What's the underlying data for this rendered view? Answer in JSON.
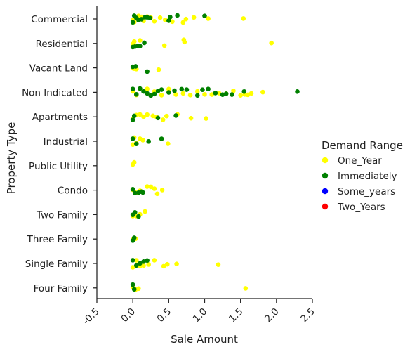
{
  "chart_data": {
    "type": "scatter",
    "subtype": "strip",
    "title": "",
    "xlabel": "Sale Amount",
    "ylabel": "Property Type",
    "xlim": [
      -0.5,
      2.5
    ],
    "x_ticks": [
      -0.5,
      0.0,
      0.5,
      1.0,
      1.5,
      2.0,
      2.5
    ],
    "x_tick_labels": [
      "-0.5",
      "0.0",
      "0.5",
      "1.0",
      "1.5",
      "2.0",
      "2.5"
    ],
    "x_tick_rotation_deg": 45,
    "x_unit_note": "",
    "grid": false,
    "legend": {
      "title": "Demand Range",
      "placement": "right",
      "entries": [
        {
          "name": "One_Year",
          "color": "#ffff00"
        },
        {
          "name": "Immediately",
          "color": "#008000"
        },
        {
          "name": "Some_years",
          "color": "#0000ff"
        },
        {
          "name": "Two_Years",
          "color": "#ff0000"
        }
      ]
    },
    "categories": [
      "Commercial",
      "Residential",
      "Vacant Land",
      "Non Indicated",
      "Apartments",
      "Industrial",
      "Public Utility",
      "Condo",
      "Two Family",
      "Three Family",
      "Single Family",
      "Four Family"
    ],
    "series": [
      {
        "name": "One_Year",
        "color": "#ffff00",
        "points": [
          {
            "category": "Commercial",
            "x": [
              0.0,
              0.02,
              0.05,
              0.08,
              0.12,
              0.15,
              0.2,
              0.25,
              0.3,
              0.38,
              0.45,
              0.55,
              0.7,
              0.74,
              0.85,
              1.05,
              1.54
            ]
          },
          {
            "category": "Residential",
            "x": [
              0.0,
              0.02,
              0.05,
              0.1,
              0.44,
              0.71,
              0.72,
              1.93
            ]
          },
          {
            "category": "Vacant Land",
            "x": [
              0.0,
              0.02,
              0.05,
              0.36
            ]
          },
          {
            "category": "Non Indicated",
            "x": [
              0.0,
              0.05,
              0.1,
              0.2,
              0.3,
              0.4,
              0.5,
              0.6,
              0.7,
              0.8,
              0.9,
              1.0,
              1.1,
              1.2,
              1.3,
              1.4,
              1.5,
              1.56,
              1.6,
              1.65,
              1.81
            ]
          },
          {
            "category": "Apartments",
            "x": [
              0.0,
              0.05,
              0.1,
              0.15,
              0.2,
              0.28,
              0.33,
              0.42,
              0.47,
              0.62,
              0.81,
              1.02
            ]
          },
          {
            "category": "Industrial",
            "x": [
              0.0,
              0.02,
              0.05,
              0.1,
              0.14,
              0.49
            ]
          },
          {
            "category": "Public Utility",
            "x": [
              0.0,
              0.02
            ]
          },
          {
            "category": "Condo",
            "x": [
              0.0,
              0.05,
              0.1,
              0.2,
              0.25,
              0.3,
              0.34,
              0.41
            ]
          },
          {
            "category": "Two Family",
            "x": [
              0.0,
              0.05,
              0.1,
              0.17
            ]
          },
          {
            "category": "Three Family",
            "x": [
              0.0,
              0.04
            ]
          },
          {
            "category": "Single Family",
            "x": [
              0.0,
              0.05,
              0.1,
              0.15,
              0.22,
              0.3,
              0.43,
              0.48,
              0.61,
              1.19
            ]
          },
          {
            "category": "Four Family",
            "x": [
              0.0,
              0.04,
              0.08,
              1.57
            ]
          }
        ]
      },
      {
        "name": "Immediately",
        "color": "#008000",
        "points": [
          {
            "category": "Commercial",
            "x": [
              0.0,
              0.02,
              0.05,
              0.08,
              0.12,
              0.17,
              0.2,
              0.24,
              0.5,
              0.52,
              0.62,
              1.0
            ]
          },
          {
            "category": "Residential",
            "x": [
              0.0,
              0.03,
              0.07,
              0.1,
              0.16
            ]
          },
          {
            "category": "Vacant Land",
            "x": [
              0.0,
              0.04,
              0.2
            ]
          },
          {
            "category": "Non Indicated",
            "x": [
              0.0,
              0.05,
              0.1,
              0.15,
              0.2,
              0.25,
              0.3,
              0.35,
              0.4,
              0.5,
              0.58,
              0.68,
              0.75,
              0.9,
              0.97,
              1.05,
              1.15,
              1.25,
              1.3,
              1.38,
              1.55,
              2.29
            ]
          },
          {
            "category": "Apartments",
            "x": [
              0.0,
              0.02,
              0.35,
              0.6
            ]
          },
          {
            "category": "Industrial",
            "x": [
              0.0,
              0.05,
              0.22,
              0.4
            ]
          },
          {
            "category": "Condo",
            "x": [
              0.0,
              0.03,
              0.08,
              0.12,
              0.14
            ]
          },
          {
            "category": "Two Family",
            "x": [
              0.0,
              0.03,
              0.08
            ]
          },
          {
            "category": "Three Family",
            "x": [
              0.0,
              0.02
            ]
          },
          {
            "category": "Single Family",
            "x": [
              0.0,
              0.05,
              0.1,
              0.15,
              0.2
            ]
          },
          {
            "category": "Four Family",
            "x": [
              0.0,
              0.02
            ]
          }
        ]
      },
      {
        "name": "Some_years",
        "color": "#0000ff",
        "points": []
      },
      {
        "name": "Two_Years",
        "color": "#ff0000",
        "points": []
      }
    ]
  }
}
